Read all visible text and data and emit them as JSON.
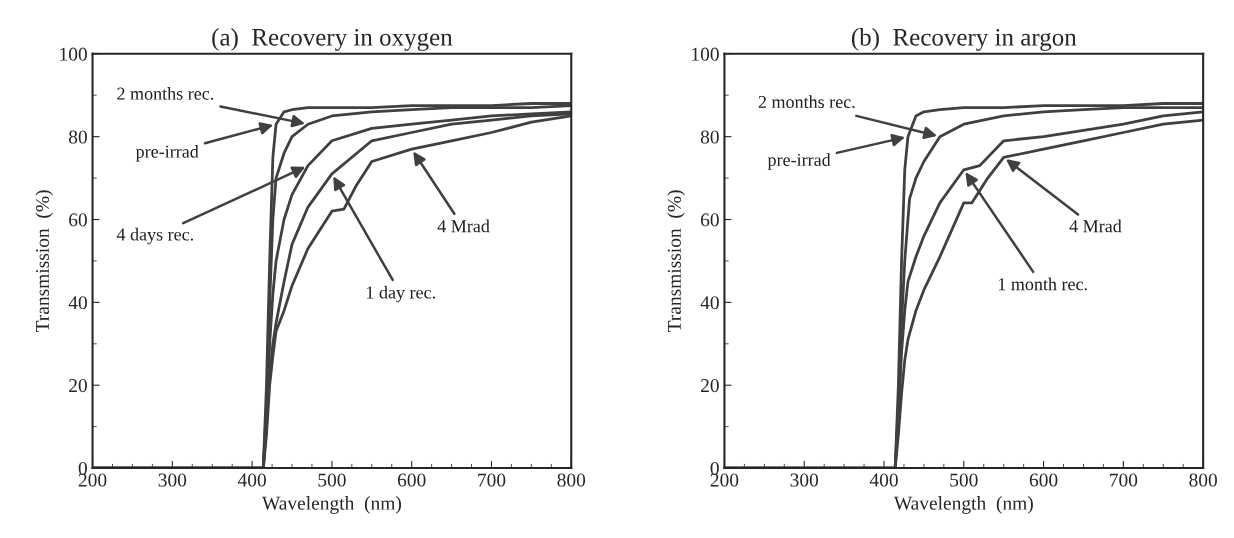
{
  "chart_data": [
    {
      "type": "line",
      "title": "(a)  Recovery in oxygen",
      "xlabel": "Wavelength  (nm)",
      "ylabel": "Transmission  (%)",
      "xlim": [
        200,
        800
      ],
      "ylim": [
        0,
        100
      ],
      "xticks": [
        200,
        300,
        400,
        500,
        600,
        700,
        800
      ],
      "yticks": [
        0,
        20,
        40,
        60,
        80,
        100
      ],
      "grid": false,
      "legend": false,
      "marker": "none",
      "line_style": "solid",
      "annotations": [
        {
          "text": "pre-irrad",
          "x": 430,
          "y": 83
        },
        {
          "text": "2 months rec.",
          "x": 470,
          "y": 83
        },
        {
          "text": "4 days rec.",
          "x": 470,
          "y": 73
        },
        {
          "text": "1 day rec.",
          "x": 500,
          "y": 71
        },
        {
          "text": "4 Mrad",
          "x": 600,
          "y": 77
        }
      ],
      "series": [
        {
          "color": "#404040",
          "x": [
            200,
            414,
            418,
            422,
            426,
            430,
            440,
            450,
            470,
            500,
            550,
            600,
            650,
            700,
            750,
            800
          ],
          "values": [
            0,
            0,
            20,
            50,
            75,
            83,
            86,
            86.5,
            87,
            87,
            87,
            87.5,
            87.5,
            87.5,
            88,
            88
          ]
        },
        {
          "color": "#404040",
          "x": [
            200,
            414,
            418,
            422,
            426,
            430,
            440,
            450,
            470,
            500,
            550,
            600,
            650,
            700,
            750,
            800
          ],
          "values": [
            0,
            0,
            15,
            40,
            60,
            70,
            76,
            80,
            83,
            85,
            86,
            86.5,
            87,
            87,
            87,
            87.5
          ]
        },
        {
          "color": "#404040",
          "x": [
            200,
            414,
            418,
            422,
            426,
            430,
            440,
            450,
            470,
            500,
            550,
            600,
            650,
            700,
            750,
            800
          ],
          "values": [
            0,
            0,
            12,
            30,
            42,
            50,
            60,
            66,
            73,
            79,
            82,
            83,
            84,
            85,
            85.5,
            86
          ]
        },
        {
          "color": "#404040",
          "x": [
            200,
            414,
            418,
            422,
            426,
            430,
            440,
            450,
            470,
            500,
            550,
            600,
            650,
            700,
            750,
            800
          ],
          "values": [
            0,
            0,
            10,
            22,
            30,
            35,
            45,
            54,
            63,
            71,
            79,
            81,
            83,
            84,
            85,
            85.5
          ]
        },
        {
          "color": "#404040",
          "x": [
            200,
            414,
            418,
            422,
            426,
            430,
            440,
            450,
            470,
            500,
            515,
            530,
            550,
            600,
            650,
            700,
            750,
            800
          ],
          "values": [
            0,
            0,
            8,
            20,
            27,
            33,
            38,
            44,
            53,
            62,
            62.5,
            68,
            74,
            77,
            79,
            81,
            83.5,
            85
          ]
        }
      ]
    },
    {
      "type": "line",
      "title": "(b)  Recovery in argon",
      "xlabel": "Wavelength  (nm)",
      "ylabel": "Transmission  (%)",
      "xlim": [
        200,
        800
      ],
      "ylim": [
        0,
        100
      ],
      "xticks": [
        200,
        300,
        400,
        500,
        600,
        700,
        800
      ],
      "yticks": [
        0,
        20,
        40,
        60,
        80,
        100
      ],
      "grid": false,
      "legend": false,
      "marker": "none",
      "line_style": "solid",
      "annotations": [
        {
          "text": "pre-irrad",
          "x": 430,
          "y": 80
        },
        {
          "text": "2 months rec.",
          "x": 470,
          "y": 80
        },
        {
          "text": "1 month rec.",
          "x": 500,
          "y": 72
        },
        {
          "text": "4 Mrad",
          "x": 550,
          "y": 75
        }
      ],
      "series": [
        {
          "color": "#404040",
          "x": [
            200,
            414,
            418,
            422,
            426,
            430,
            440,
            450,
            470,
            500,
            550,
            600,
            650,
            700,
            750,
            800
          ],
          "values": [
            0,
            0,
            20,
            50,
            72,
            80,
            85,
            86,
            86.5,
            87,
            87,
            87.5,
            87.5,
            87.5,
            88,
            88
          ]
        },
        {
          "color": "#404040",
          "x": [
            200,
            414,
            418,
            422,
            426,
            432,
            440,
            450,
            470,
            500,
            550,
            600,
            650,
            700,
            750,
            800
          ],
          "values": [
            0,
            0,
            15,
            35,
            50,
            65,
            70,
            74,
            80,
            83,
            85,
            86,
            86.5,
            87,
            87,
            87
          ]
        },
        {
          "color": "#404040",
          "x": [
            200,
            414,
            418,
            422,
            426,
            430,
            440,
            450,
            470,
            500,
            520,
            550,
            600,
            650,
            700,
            750,
            800
          ],
          "values": [
            0,
            0,
            12,
            28,
            38,
            45,
            51,
            56,
            64,
            72,
            73,
            79,
            80,
            81.5,
            83,
            85,
            86
          ]
        },
        {
          "color": "#404040",
          "x": [
            200,
            414,
            418,
            422,
            426,
            430,
            440,
            450,
            470,
            500,
            510,
            530,
            550,
            600,
            650,
            700,
            750,
            800
          ],
          "values": [
            0,
            0,
            8,
            18,
            26,
            31,
            38,
            43,
            51,
            64,
            64,
            70,
            75,
            77,
            79,
            81,
            83,
            84
          ]
        }
      ]
    }
  ]
}
